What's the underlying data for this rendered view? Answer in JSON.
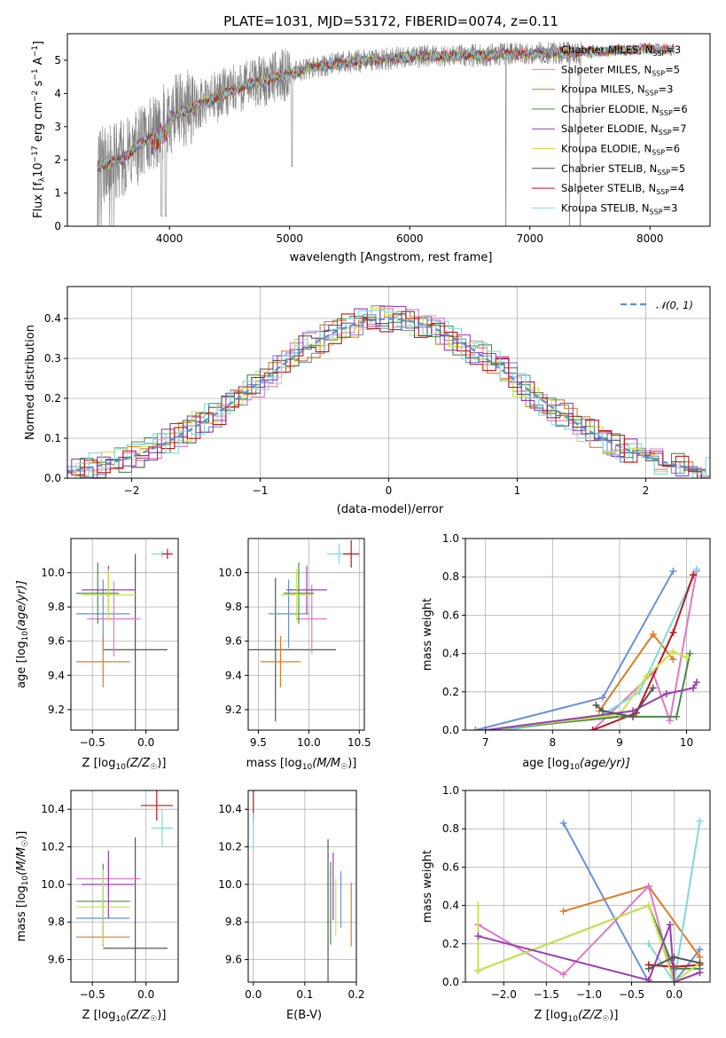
{
  "colors": {
    "chabrier_miles": "#6a8fdc",
    "salpeter_miles": "#e178c4",
    "kroupa_miles": "#e07b22",
    "chabrier_elodie": "#4a8a4a",
    "salpeter_elodie": "#9b3cb2",
    "kroupa_elodie": "#c9e34a",
    "chabrier_stelib": "#555555",
    "salpeter_stelib": "#c0151b",
    "kroupa_stelib": "#7fd8e0",
    "data": "#808080",
    "normal": "#5b8fd6"
  },
  "chart_data": [
    {
      "type": "line",
      "title": "PLATE=1031, MJD=53172, FIBERID=0074, z=0.11",
      "xlabel": "wavelength [Angstrom, rest frame]",
      "ylabel": "Flux [f",
      "ylabel_parts": [
        "Flux [f",
        "λ",
        "10",
        "−17",
        " erg cm",
        "−2",
        " s",
        "−1",
        " A",
        "−1",
        "]"
      ],
      "xlim": [
        3150,
        8500
      ],
      "ylim": [
        0,
        5.8
      ],
      "xticks": [
        "4000",
        "5000",
        "6000",
        "7000",
        "8000"
      ],
      "yticks": [
        "0",
        "1",
        "2",
        "3",
        "4",
        "5"
      ],
      "legend_position": "upper right",
      "legend": [
        {
          "name": "Chabrier MILES",
          "n": "3"
        },
        {
          "name": "Salpeter MILES",
          "n": "5"
        },
        {
          "name": "Kroupa MILES",
          "n": "3"
        },
        {
          "name": "Chabrier ELODIE",
          "n": "6"
        },
        {
          "name": "Salpeter ELODIE",
          "n": "7"
        },
        {
          "name": "Kroupa ELODIE",
          "n": "6"
        },
        {
          "name": "Chabrier STELIB",
          "n": "5"
        },
        {
          "name": "Salpeter STELIB",
          "n": "4"
        },
        {
          "name": "Kroupa STELIB",
          "n": "3"
        }
      ],
      "legend_n_label": "N",
      "legend_n_sub": "SSP",
      "model_continuum": {
        "x": [
          3400,
          3500,
          3600,
          3700,
          3800,
          3900,
          4000,
          4200,
          4400,
          4600,
          4800,
          5000,
          5200,
          5500,
          6000,
          6500,
          7000,
          7500,
          8000,
          8200
        ],
        "y": [
          1.8,
          1.9,
          2.0,
          2.3,
          2.6,
          2.9,
          3.3,
          3.6,
          3.9,
          4.2,
          4.4,
          4.6,
          4.8,
          4.95,
          5.1,
          5.15,
          5.2,
          5.25,
          5.35,
          5.3
        ]
      }
    },
    {
      "type": "line",
      "xlabel": "(data-model)/error",
      "ylabel": "Normed distribution",
      "xlim": [
        -2.5,
        2.5
      ],
      "ylim": [
        0,
        0.48
      ],
      "xticks": [
        "−2",
        "−1",
        "0",
        "1",
        "2"
      ],
      "yticks": [
        "0.0",
        "0.1",
        "0.2",
        "0.3",
        "0.4"
      ],
      "legend_position": "upper right",
      "legend": [
        {
          "name": "𝒩(0, 1)"
        }
      ],
      "normal": {
        "mu": 0,
        "sigma": 1
      },
      "bin_width": 0.1
    },
    {
      "type": "scatter",
      "xlabel": "Z [log",
      "xlabel_parts": [
        "Z [log",
        "10",
        "(Z/Z",
        "☉",
        ")]"
      ],
      "ylabel_parts": [
        "age  [log",
        "10",
        "(age/yr)]"
      ],
      "xlim": [
        -0.7,
        0.3
      ],
      "ylim": [
        9.08,
        10.2
      ],
      "xticks": [
        "−0.5",
        "0.0"
      ],
      "yticks": [
        "9.2",
        "9.4",
        "9.6",
        "9.8",
        "10.0"
      ],
      "points": [
        {
          "x": 0.15,
          "y": 10.11,
          "xerr": 0.1,
          "yerr": 0.02,
          "s": "kroupa_stelib"
        },
        {
          "x": 0.2,
          "y": 10.11,
          "xerr": 0.05,
          "yerr": 0.03,
          "s": "salpeter_stelib"
        },
        {
          "x": -0.1,
          "y": 9.55,
          "xerr": 0.3,
          "yerr": 0.56,
          "s": "chabrier_stelib"
        },
        {
          "x": -0.4,
          "y": 9.76,
          "xerr": 0.25,
          "yerr": 0.2,
          "s": "chabrier_miles"
        },
        {
          "x": -0.3,
          "y": 9.73,
          "xerr": 0.25,
          "yerr": 0.22,
          "s": "salpeter_miles"
        },
        {
          "x": -0.4,
          "y": 9.48,
          "xerr": 0.25,
          "yerr": 0.15,
          "s": "kroupa_miles"
        },
        {
          "x": -0.45,
          "y": 9.88,
          "xerr": 0.2,
          "yerr": 0.18,
          "s": "chabrier_elodie"
        },
        {
          "x": -0.35,
          "y": 9.9,
          "xerr": 0.25,
          "yerr": 0.14,
          "s": "salpeter_elodie"
        },
        {
          "x": -0.35,
          "y": 9.87,
          "xerr": 0.25,
          "yerr": 0.15,
          "s": "kroupa_elodie"
        }
      ]
    },
    {
      "type": "scatter",
      "xlabel_parts": [
        "mass [log",
        "10",
        "(M/M",
        "☉",
        ")]"
      ],
      "xlim": [
        9.4,
        10.55
      ],
      "ylim": [
        9.08,
        10.2
      ],
      "xticks": [
        "9.5",
        "10.0",
        "10.5"
      ],
      "yticks": [
        "9.2",
        "9.4",
        "9.6",
        "9.8",
        "10.0"
      ],
      "points": [
        {
          "x": 10.3,
          "y": 10.11,
          "xerr": 0.12,
          "yerr": 0.06,
          "s": "kroupa_stelib"
        },
        {
          "x": 10.42,
          "y": 10.11,
          "xerr": 0.08,
          "yerr": 0.08,
          "s": "salpeter_stelib"
        },
        {
          "x": 9.67,
          "y": 9.55,
          "xerr": 0.6,
          "yerr": 0.42,
          "s": "chabrier_stelib"
        },
        {
          "x": 9.8,
          "y": 9.76,
          "xerr": 0.2,
          "yerr": 0.2,
          "s": "chabrier_miles"
        },
        {
          "x": 10.03,
          "y": 9.73,
          "xerr": 0.15,
          "yerr": 0.2,
          "s": "salpeter_miles"
        },
        {
          "x": 9.72,
          "y": 9.48,
          "xerr": 0.2,
          "yerr": 0.15,
          "s": "kroupa_miles"
        },
        {
          "x": 9.9,
          "y": 9.88,
          "xerr": 0.15,
          "yerr": 0.18,
          "s": "chabrier_elodie"
        },
        {
          "x": 9.98,
          "y": 9.9,
          "xerr": 0.2,
          "yerr": 0.14,
          "s": "salpeter_elodie"
        },
        {
          "x": 9.88,
          "y": 9.87,
          "xerr": 0.15,
          "yerr": 0.15,
          "s": "kroupa_elodie"
        }
      ]
    },
    {
      "type": "line",
      "xlabel_parts": [
        "age  [log",
        "10",
        "(age/yr)]"
      ],
      "ylabel": "mass weight",
      "xlim": [
        6.7,
        10.35
      ],
      "ylim": [
        0,
        1.0
      ],
      "xticks": [
        "7",
        "8",
        "9",
        "10"
      ],
      "xtick_values": [
        7,
        8,
        9,
        10
      ],
      "yticks": [
        "0.0",
        "0.2",
        "0.4",
        "0.6",
        "0.8",
        "1.0"
      ],
      "series": [
        {
          "s": "chabrier_miles",
          "x": [
            6.85,
            8.75,
            9.8
          ],
          "y": [
            0.0,
            0.17,
            0.83
          ]
        },
        {
          "s": "kroupa_miles",
          "x": [
            8.7,
            9.5,
            9.8
          ],
          "y": [
            0.1,
            0.5,
            0.37
          ]
        },
        {
          "s": "salpeter_miles",
          "x": [
            8.6,
            9.5,
            9.75,
            10.15
          ],
          "y": [
            0.0,
            0.3,
            0.05,
            0.83
          ]
        },
        {
          "s": "kroupa_stelib",
          "x": [
            7.3,
            8.7,
            9.3,
            10.15
          ],
          "y": [
            0.0,
            0.07,
            0.2,
            0.84
          ]
        },
        {
          "s": "salpeter_stelib",
          "x": [
            8.6,
            9.25,
            9.8,
            10.1
          ],
          "y": [
            0.0,
            0.09,
            0.51,
            0.81
          ]
        },
        {
          "s": "chabrier_elodie",
          "x": [
            7.0,
            9.0,
            9.85,
            10.05
          ],
          "y": [
            0.0,
            0.07,
            0.07,
            0.4
          ]
        },
        {
          "s": "kroupa_elodie",
          "x": [
            7.0,
            9.0,
            9.4,
            9.8,
            10.0
          ],
          "y": [
            0.0,
            0.08,
            0.28,
            0.41,
            0.38
          ]
        },
        {
          "s": "salpeter_elodie",
          "x": [
            7.0,
            9.2,
            9.7,
            10.1,
            10.15
          ],
          "y": [
            0.0,
            0.1,
            0.19,
            0.22,
            0.25
          ]
        },
        {
          "s": "chabrier_stelib",
          "x": [
            8.65,
            8.75,
            9.2,
            9.5
          ],
          "y": [
            0.13,
            0.1,
            0.07,
            0.22
          ]
        }
      ]
    },
    {
      "type": "scatter",
      "xlabel_parts": [
        "Z [log",
        "10",
        "(Z/Z",
        "☉",
        ")]"
      ],
      "ylabel_parts": [
        "mass [log",
        "10",
        "(M/M",
        "☉",
        ")]"
      ],
      "xlim": [
        -0.7,
        0.3
      ],
      "ylim": [
        9.48,
        10.5
      ],
      "xticks": [
        "−0.5",
        "0.0"
      ],
      "yticks": [
        "9.6",
        "9.8",
        "10.0",
        "10.2",
        "10.4"
      ],
      "points": [
        {
          "x": 0.15,
          "y": 10.3,
          "xerr": 0.1,
          "yerr": 0.1,
          "s": "kroupa_stelib"
        },
        {
          "x": 0.1,
          "y": 10.42,
          "xerr": 0.15,
          "yerr": 0.08,
          "s": "salpeter_stelib"
        },
        {
          "x": -0.1,
          "y": 9.66,
          "xerr": 0.3,
          "yerr": 0.59,
          "s": "chabrier_stelib"
        },
        {
          "x": -0.4,
          "y": 9.82,
          "xerr": 0.25,
          "yerr": 0.1,
          "s": "chabrier_miles"
        },
        {
          "x": -0.35,
          "y": 10.03,
          "xerr": 0.3,
          "yerr": 0.1,
          "s": "salpeter_miles"
        },
        {
          "x": -0.4,
          "y": 9.72,
          "xerr": 0.25,
          "yerr": 0.05,
          "s": "kroupa_miles"
        },
        {
          "x": -0.4,
          "y": 9.91,
          "xerr": 0.25,
          "yerr": 0.2,
          "s": "chabrier_elodie"
        },
        {
          "x": -0.35,
          "y": 10.0,
          "xerr": 0.25,
          "yerr": 0.18,
          "s": "salpeter_elodie"
        },
        {
          "x": -0.4,
          "y": 9.88,
          "xerr": 0.25,
          "yerr": 0.2,
          "s": "kroupa_elodie"
        }
      ]
    },
    {
      "type": "scatter",
      "xlabel": "E(B-V)",
      "xlim": [
        -0.01,
        0.2
      ],
      "ylim": [
        9.48,
        10.5
      ],
      "xticks": [
        "0.0",
        "0.1",
        "0.2"
      ],
      "xtick_values": [
        0.0,
        0.1,
        0.2
      ],
      "yticks": [
        "9.6",
        "9.8",
        "10.0",
        "10.2",
        "10.4"
      ],
      "points": [
        {
          "x": 0.0,
          "y": 10.42,
          "xerr": 0,
          "yerr": 0.08,
          "s": "salpeter_stelib"
        },
        {
          "x": 0.0,
          "y": 10.28,
          "xerr": 0,
          "yerr": 0.1,
          "s": "kroupa_stelib"
        },
        {
          "x": 0.145,
          "y": 9.86,
          "xerr": 0,
          "yerr": 0.38,
          "s": "chabrier_stelib"
        },
        {
          "x": 0.15,
          "y": 9.9,
          "xerr": 0,
          "yerr": 0.22,
          "s": "chabrier_elodie"
        },
        {
          "x": 0.155,
          "y": 9.99,
          "xerr": 0,
          "yerr": 0.18,
          "s": "salpeter_elodie"
        },
        {
          "x": 0.16,
          "y": 9.88,
          "xerr": 0,
          "yerr": 0.15,
          "s": "kroupa_elodie"
        },
        {
          "x": 0.17,
          "y": 9.92,
          "xerr": 0,
          "yerr": 0.15,
          "s": "chabrier_miles"
        },
        {
          "x": 0.19,
          "y": 9.84,
          "xerr": 0,
          "yerr": 0.17,
          "s": "kroupa_miles"
        }
      ]
    },
    {
      "type": "line",
      "xlabel_parts": [
        "Z [log",
        "10",
        "(Z/Z",
        "☉",
        ")]"
      ],
      "ylabel": "mass weight",
      "xlim": [
        -2.45,
        0.42
      ],
      "ylim": [
        0,
        1.0
      ],
      "xticks": [
        "−2.0",
        "−1.5",
        "−1.0",
        "−0.5",
        "0.0"
      ],
      "xtick_values": [
        -2.0,
        -1.5,
        -1.0,
        -0.5,
        0.0
      ],
      "yticks": [
        "0.0",
        "0.2",
        "0.4",
        "0.6",
        "0.8",
        "1.0"
      ],
      "series": [
        {
          "s": "chabrier_miles",
          "x": [
            -1.3,
            -0.3,
            0.0,
            0.3
          ],
          "y": [
            0.83,
            0.0,
            0.0,
            0.17
          ]
        },
        {
          "s": "kroupa_miles",
          "x": [
            -1.3,
            -0.3,
            0.3
          ],
          "y": [
            0.37,
            0.5,
            0.13
          ]
        },
        {
          "s": "salpeter_miles",
          "x": [
            -2.3,
            -1.3,
            -0.3,
            0.0,
            0.3
          ],
          "y": [
            0.3,
            0.04,
            0.5,
            0.0,
            0.05
          ]
        },
        {
          "s": "kroupa_stelib",
          "x": [
            -0.3,
            0.0,
            0.3
          ],
          "y": [
            0.2,
            0.0,
            0.84
          ]
        },
        {
          "s": "salpeter_stelib",
          "x": [
            -0.3,
            0.0,
            0.3
          ],
          "y": [
            0.09,
            0.08,
            0.09
          ]
        },
        {
          "s": "chabrier_elodie",
          "x": [
            -2.3,
            -0.3,
            0.0,
            0.3
          ],
          "y": [
            0.06,
            0.4,
            0.07,
            0.07
          ]
        },
        {
          "s": "kroupa_elodie",
          "x": [
            -2.3,
            -2.3,
            -0.3,
            0.0,
            0.3
          ],
          "y": [
            0.4,
            0.06,
            0.4,
            0.0,
            0.1
          ]
        },
        {
          "s": "salpeter_elodie",
          "x": [
            -2.3,
            -0.3,
            -0.05,
            0.0,
            0.3
          ],
          "y": [
            0.24,
            0.01,
            0.3,
            0.0,
            0.05
          ]
        },
        {
          "s": "chabrier_stelib",
          "x": [
            -0.3,
            0.0,
            0.3
          ],
          "y": [
            0.07,
            0.13,
            0.1
          ]
        }
      ]
    }
  ]
}
